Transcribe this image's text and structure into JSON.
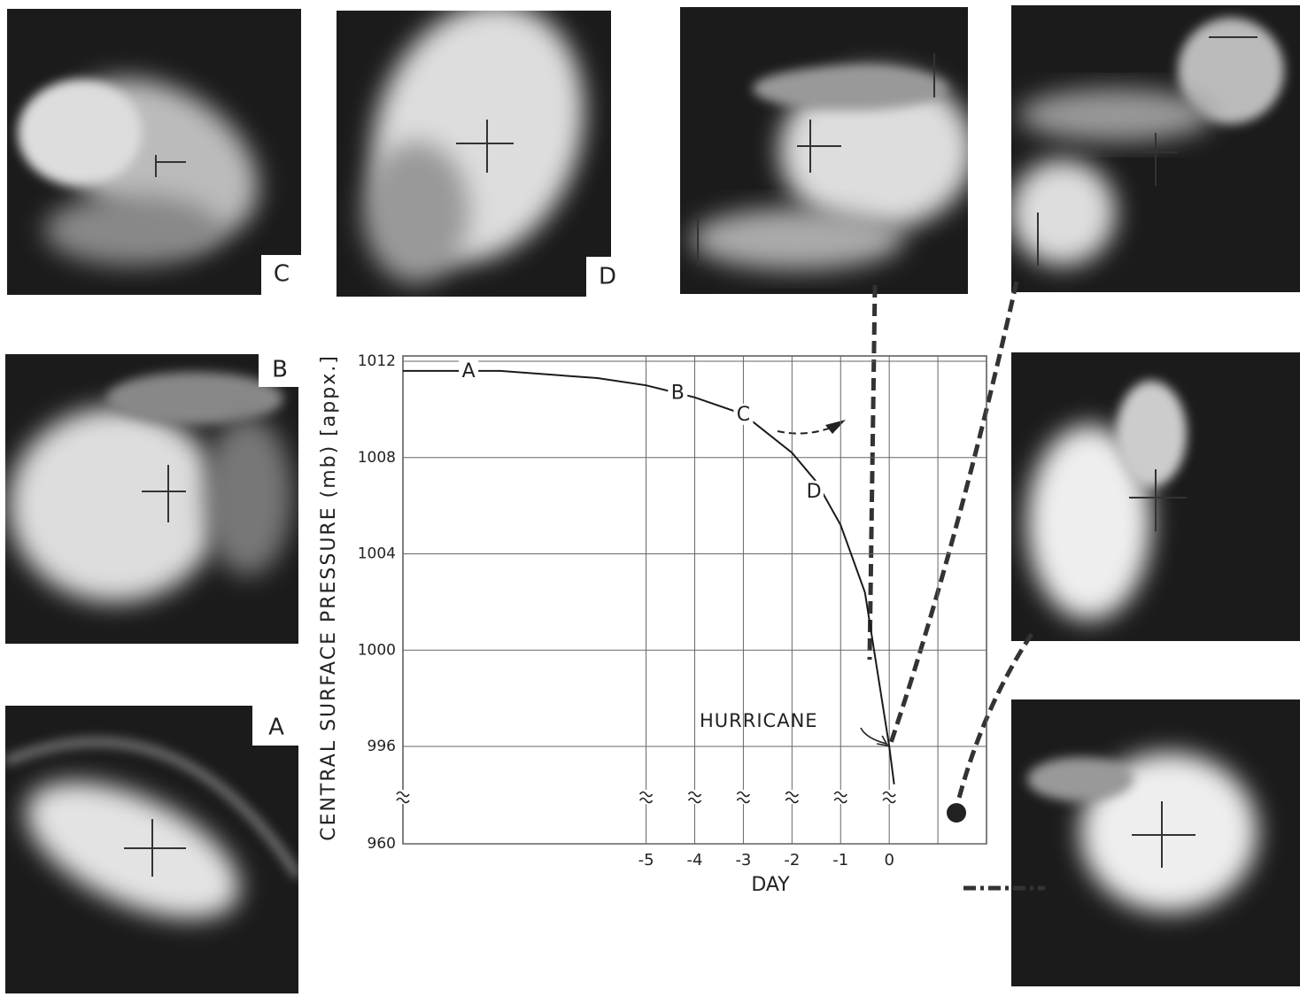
{
  "chart_data": {
    "type": "line",
    "ylabel": "CENTRAL SURFACE PRESSURE (mb) [appx.]",
    "xlabel": "DAY",
    "x": [
      -10,
      -8,
      -6,
      -5,
      -4,
      -3,
      -2,
      -1.5,
      -1,
      -0.5,
      0,
      0.1
    ],
    "values": [
      1011.6,
      1011.6,
      1011.3,
      1011.0,
      1010.5,
      1009.8,
      1008.2,
      1007.0,
      1005.2,
      1002.4,
      996,
      982
    ],
    "color": "#1a1a1a",
    "xlim": [
      -10,
      2
    ],
    "xticks": [
      -5,
      -4,
      -3,
      -2,
      -1,
      0
    ],
    "xgrid": [
      -5,
      -4,
      -3,
      -2,
      -1,
      0,
      1
    ],
    "ylim": [
      960,
      1012
    ],
    "yticks": [
      960,
      996,
      1000,
      1004,
      1008,
      1012
    ],
    "y_break": true,
    "grid": true,
    "annotations": [
      {
        "text": "A",
        "x": -8.65,
        "y": 1011.6
      },
      {
        "text": "B",
        "x": -4.35,
        "y": 1010.7
      },
      {
        "text": "C",
        "x": -3.0,
        "y": 1009.8
      },
      {
        "text": "D",
        "x": -1.55,
        "y": 1006.6
      }
    ],
    "hurricane_label": "HURRICANE",
    "photo_labels": [
      "C",
      "D",
      "B",
      "A"
    ]
  }
}
